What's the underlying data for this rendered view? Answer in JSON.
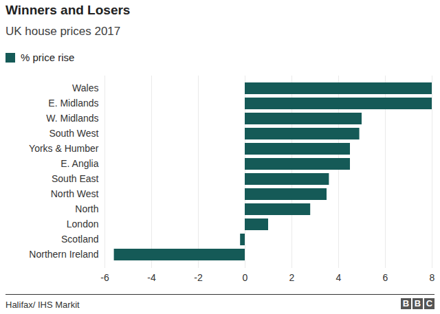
{
  "chart_data": {
    "type": "bar",
    "orientation": "horizontal",
    "title": "Winners and Losers",
    "subtitle": "UK house prices 2017",
    "source": "Halifax/ IHS Markit",
    "logo": "BBC",
    "categories": [
      "Wales",
      "E. Midlands",
      "W. Midlands",
      "South West",
      "Yorks & Humber",
      "E. Anglia",
      "South East",
      "North West",
      "North",
      "London",
      "Scotland",
      "Northern Ireland"
    ],
    "series": [
      {
        "name": "% price rise",
        "color": "#155a57",
        "values": [
          8.0,
          8.0,
          5.0,
          4.9,
          4.5,
          4.5,
          3.6,
          3.5,
          2.8,
          1.0,
          -0.2,
          -5.6
        ]
      }
    ],
    "xlim": [
      -6,
      8
    ],
    "xticks": [
      -6,
      -4,
      -2,
      0,
      2,
      4,
      6,
      8
    ],
    "grid": true,
    "legend": "top-left"
  }
}
